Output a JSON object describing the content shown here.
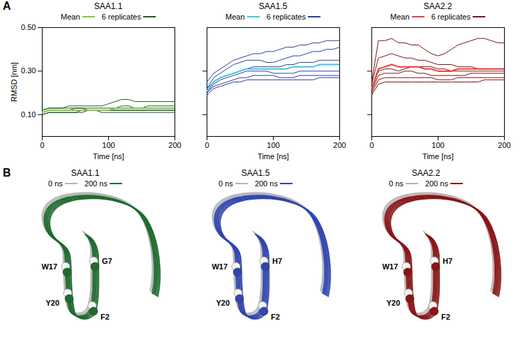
{
  "chart_data": [
    {
      "type": "line",
      "title": "SAA1.1",
      "legend": "top",
      "x": [
        0,
        10,
        20,
        30,
        40,
        50,
        60,
        70,
        80,
        90,
        100,
        110,
        120,
        130,
        140,
        150,
        160,
        170,
        180,
        190,
        200
      ],
      "xlim": [
        0,
        200
      ],
      "xticks": [
        0,
        100,
        200
      ],
      "ylim": [
        0,
        0.5
      ],
      "yticks": [
        {
          "value": 0.1,
          "label": "0.10"
        },
        {
          "value": 0.3,
          "label": "0.30"
        },
        {
          "value": 0.5,
          "label": "0.50"
        }
      ],
      "x_label": "Time [ns]",
      "y_label": "RMSD [nm]",
      "series": [
        {
          "name": "Mean",
          "color": "#8cc63e",
          "values": [
            0.11,
            0.12,
            0.12,
            0.12,
            0.12,
            0.12,
            0.12,
            0.12,
            0.12,
            0.12,
            0.12,
            0.13,
            0.13,
            0.13,
            0.13,
            0.13,
            0.13,
            0.13,
            0.13,
            0.13,
            0.13
          ]
        },
        {
          "name": "6 replicates",
          "color": "#1a5c24",
          "values": [
            0.12,
            0.13,
            0.13,
            0.13,
            0.14,
            0.14,
            0.14,
            0.14,
            0.14,
            0.14,
            0.15,
            0.16,
            0.17,
            0.17,
            0.16,
            0.16,
            0.16,
            0.16,
            0.16,
            0.16,
            0.16
          ]
        },
        {
          "name": "6 replicates",
          "color": "#1a5c24",
          "values": [
            0.11,
            0.12,
            0.12,
            0.12,
            0.12,
            0.12,
            0.12,
            0.12,
            0.12,
            0.12,
            0.12,
            0.12,
            0.12,
            0.12,
            0.12,
            0.12,
            0.12,
            0.12,
            0.12,
            0.12,
            0.12
          ]
        },
        {
          "name": "6 replicates",
          "color": "#1a5c24",
          "values": [
            0.1,
            0.11,
            0.11,
            0.11,
            0.11,
            0.11,
            0.11,
            0.12,
            0.12,
            0.11,
            0.11,
            0.11,
            0.11,
            0.11,
            0.11,
            0.11,
            0.11,
            0.11,
            0.11,
            0.11,
            0.11
          ]
        },
        {
          "name": "6 replicates",
          "color": "#1a5c24",
          "values": [
            0.11,
            0.12,
            0.12,
            0.12,
            0.12,
            0.13,
            0.13,
            0.12,
            0.12,
            0.12,
            0.12,
            0.13,
            0.13,
            0.13,
            0.13,
            0.13,
            0.14,
            0.14,
            0.14,
            0.14,
            0.14
          ]
        },
        {
          "name": "6 replicates",
          "color": "#1a5c24",
          "values": [
            0.1,
            0.11,
            0.11,
            0.11,
            0.11,
            0.11,
            0.12,
            0.12,
            0.12,
            0.12,
            0.12,
            0.12,
            0.12,
            0.12,
            0.12,
            0.12,
            0.12,
            0.12,
            0.12,
            0.12,
            0.12
          ]
        },
        {
          "name": "6 replicates",
          "color": "#1a5c24",
          "values": [
            0.12,
            0.13,
            0.13,
            0.13,
            0.13,
            0.13,
            0.13,
            0.13,
            0.13,
            0.13,
            0.13,
            0.13,
            0.14,
            0.14,
            0.13,
            0.13,
            0.13,
            0.13,
            0.13,
            0.13,
            0.13
          ]
        }
      ]
    },
    {
      "type": "line",
      "title": "SAA1.5",
      "legend": "top",
      "tick_labels": "x",
      "x": [
        0,
        10,
        20,
        30,
        40,
        50,
        60,
        70,
        80,
        90,
        100,
        110,
        120,
        130,
        140,
        150,
        160,
        170,
        180,
        190,
        200
      ],
      "xlim": [
        0,
        200
      ],
      "xticks": [
        0,
        100,
        200
      ],
      "ylim": [
        0,
        0.5
      ],
      "yticks": [
        0.1,
        0.3
      ],
      "x_label": "Time [ns]",
      "series": [
        {
          "name": "Mean",
          "color": "#40c8d8",
          "values": [
            0.21,
            0.25,
            0.27,
            0.28,
            0.29,
            0.3,
            0.31,
            0.31,
            0.31,
            0.31,
            0.31,
            0.31,
            0.31,
            0.32,
            0.32,
            0.32,
            0.32,
            0.33,
            0.33,
            0.33,
            0.33
          ]
        },
        {
          "name": "6 replicates",
          "color": "#2c3e9e",
          "values": [
            0.25,
            0.29,
            0.31,
            0.33,
            0.35,
            0.36,
            0.37,
            0.38,
            0.38,
            0.39,
            0.39,
            0.4,
            0.41,
            0.41,
            0.42,
            0.42,
            0.43,
            0.43,
            0.44,
            0.44,
            0.44
          ]
        },
        {
          "name": "6 replicates",
          "color": "#2c3e9e",
          "values": [
            0.22,
            0.27,
            0.29,
            0.31,
            0.33,
            0.34,
            0.35,
            0.35,
            0.35,
            0.34,
            0.34,
            0.35,
            0.36,
            0.37,
            0.37,
            0.38,
            0.39,
            0.39,
            0.4,
            0.4,
            0.41
          ]
        },
        {
          "name": "6 replicates",
          "color": "#2c3e9e",
          "values": [
            0.22,
            0.25,
            0.27,
            0.28,
            0.29,
            0.3,
            0.31,
            0.32,
            0.32,
            0.32,
            0.32,
            0.32,
            0.33,
            0.33,
            0.34,
            0.34,
            0.34,
            0.35,
            0.35,
            0.35,
            0.35
          ]
        },
        {
          "name": "6 replicates",
          "color": "#2c3e9e",
          "values": [
            0.2,
            0.24,
            0.26,
            0.27,
            0.28,
            0.29,
            0.3,
            0.3,
            0.3,
            0.3,
            0.29,
            0.29,
            0.29,
            0.29,
            0.3,
            0.3,
            0.3,
            0.3,
            0.3,
            0.3,
            0.3
          ]
        },
        {
          "name": "6 replicates",
          "color": "#2c3e9e",
          "values": [
            0.2,
            0.23,
            0.24,
            0.25,
            0.26,
            0.27,
            0.27,
            0.28,
            0.28,
            0.28,
            0.28,
            0.27,
            0.27,
            0.27,
            0.28,
            0.28,
            0.28,
            0.28,
            0.28,
            0.28,
            0.28
          ]
        },
        {
          "name": "6 replicates",
          "color": "#2c3e9e",
          "values": [
            0.19,
            0.22,
            0.23,
            0.24,
            0.25,
            0.25,
            0.26,
            0.26,
            0.26,
            0.26,
            0.26,
            0.26,
            0.26,
            0.26,
            0.26,
            0.26,
            0.26,
            0.27,
            0.27,
            0.27,
            0.27
          ]
        }
      ]
    },
    {
      "type": "line",
      "title": "SAA2.2",
      "legend": "top",
      "tick_labels": "x",
      "x": [
        0,
        10,
        20,
        30,
        40,
        50,
        60,
        70,
        80,
        90,
        100,
        110,
        120,
        130,
        140,
        150,
        160,
        170,
        180,
        190,
        200
      ],
      "xlim": [
        0,
        200
      ],
      "xticks": [
        0,
        100,
        200
      ],
      "ylim": [
        0,
        0.5
      ],
      "yticks": [
        0.1,
        0.3
      ],
      "x_label": "Time [ns]",
      "series": [
        {
          "name": "Mean",
          "color": "#f03c3c",
          "values": [
            0.22,
            0.31,
            0.32,
            0.33,
            0.32,
            0.32,
            0.32,
            0.32,
            0.31,
            0.31,
            0.3,
            0.3,
            0.3,
            0.31,
            0.31,
            0.31,
            0.31,
            0.31,
            0.31,
            0.31,
            0.31
          ]
        },
        {
          "name": "6 replicates",
          "color": "#7a1212",
          "values": [
            0.25,
            0.44,
            0.44,
            0.45,
            0.43,
            0.43,
            0.42,
            0.42,
            0.4,
            0.38,
            0.37,
            0.38,
            0.4,
            0.42,
            0.43,
            0.44,
            0.45,
            0.45,
            0.44,
            0.43,
            0.43
          ]
        },
        {
          "name": "6 replicates",
          "color": "#7a1212",
          "values": [
            0.24,
            0.36,
            0.37,
            0.38,
            0.37,
            0.36,
            0.36,
            0.35,
            0.35,
            0.34,
            0.33,
            0.33,
            0.33,
            0.32,
            0.32,
            0.32,
            0.31,
            0.31,
            0.31,
            0.31,
            0.31
          ]
        },
        {
          "name": "6 replicates",
          "color": "#7a1212",
          "values": [
            0.22,
            0.3,
            0.31,
            0.31,
            0.3,
            0.31,
            0.32,
            0.32,
            0.32,
            0.32,
            0.31,
            0.31,
            0.3,
            0.3,
            0.3,
            0.3,
            0.3,
            0.3,
            0.3,
            0.3,
            0.3
          ]
        },
        {
          "name": "6 replicates",
          "color": "#7a1212",
          "values": [
            0.21,
            0.28,
            0.29,
            0.29,
            0.29,
            0.3,
            0.3,
            0.29,
            0.29,
            0.28,
            0.28,
            0.28,
            0.28,
            0.28,
            0.28,
            0.29,
            0.29,
            0.29,
            0.29,
            0.29,
            0.29
          ]
        },
        {
          "name": "6 replicates",
          "color": "#7a1212",
          "values": [
            0.2,
            0.26,
            0.27,
            0.27,
            0.27,
            0.27,
            0.27,
            0.27,
            0.27,
            0.27,
            0.26,
            0.26,
            0.26,
            0.27,
            0.27,
            0.27,
            0.27,
            0.27,
            0.27,
            0.27,
            0.27
          ]
        },
        {
          "name": "6 replicates",
          "color": "#7a1212",
          "values": [
            0.19,
            0.24,
            0.25,
            0.25,
            0.25,
            0.25,
            0.25,
            0.25,
            0.25,
            0.25,
            0.25,
            0.25,
            0.25,
            0.25,
            0.25,
            0.25,
            0.25,
            0.26,
            0.26,
            0.26,
            0.26
          ]
        }
      ]
    }
  ],
  "panels": [
    "A",
    "B"
  ],
  "structures": [
    {
      "title": "SAA1.1",
      "legend": [
        {
          "name": "0 ns",
          "color": "#b5b5b5"
        },
        {
          "name": "200 ns",
          "color": "#1e6b2e"
        }
      ],
      "residues": [
        "W17",
        "G7",
        "Y20",
        "F2"
      ]
    },
    {
      "title": "SAA1.5",
      "legend": [
        {
          "name": "0 ns",
          "color": "#b5b5b5"
        },
        {
          "name": "200 ns",
          "color": "#2f45b3"
        }
      ],
      "residues": [
        "W17",
        "H7",
        "Y20",
        "F2"
      ]
    },
    {
      "title": "SAA2.2",
      "legend": [
        {
          "name": "0 ns",
          "color": "#b5b5b5"
        },
        {
          "name": "200 ns",
          "color": "#8b1414"
        }
      ],
      "residues": [
        "W17",
        "H7",
        "Y20",
        "F2"
      ]
    }
  ]
}
